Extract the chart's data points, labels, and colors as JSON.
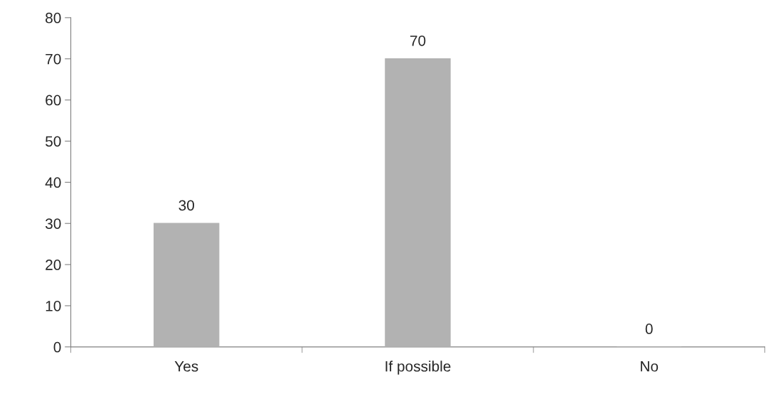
{
  "chart_data": {
    "type": "bar",
    "categories": [
      "Yes",
      "If possible",
      "No"
    ],
    "values": [
      30,
      70,
      0
    ],
    "color": "#b2b2b2",
    "ylim": [
      0,
      80
    ],
    "yticks": [
      0,
      10,
      20,
      30,
      40,
      50,
      60,
      70,
      80
    ],
    "data_labels": true,
    "grid": false,
    "legend": false
  }
}
